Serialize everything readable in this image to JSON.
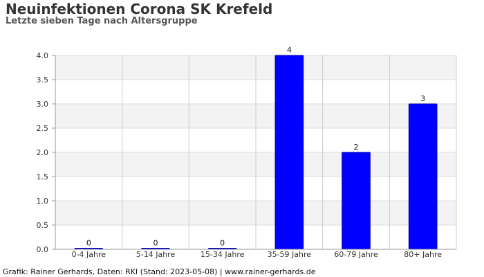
{
  "header": {
    "title": "Neuinfektionen Corona SK Krefeld",
    "subtitle": "Letzte sieben Tage nach Altersgruppe"
  },
  "footer": {
    "credit": "Grafik: Rainer Gerhards, Daten: RKI (Stand: 2023-05-08) | www.rainer-gerhards.de"
  },
  "colors": {
    "bar": "#0000ff",
    "band": "#f3f3f3",
    "grid": "#dddddd",
    "axis": "#999999"
  },
  "chart_data": {
    "type": "bar",
    "title": "Neuinfektionen Corona SK Krefeld",
    "subtitle": "Letzte sieben Tage nach Altersgruppe",
    "categories": [
      "0-4 Jahre",
      "5-14 Jahre",
      "15-34 Jahre",
      "35-59 Jahre",
      "60-79 Jahre",
      "80+ Jahre"
    ],
    "values": [
      0,
      0,
      0,
      4,
      2,
      3
    ],
    "data_labels": [
      "0",
      "0",
      "0",
      "4",
      "2",
      "3"
    ],
    "xlabel": "",
    "ylabel": "",
    "ylim": [
      0,
      4
    ],
    "yticks": [
      "0.0",
      "0.5",
      "1.0",
      "1.5",
      "2.0",
      "2.5",
      "3.0",
      "3.5",
      "4.0"
    ],
    "grid": true,
    "legend": "none"
  }
}
